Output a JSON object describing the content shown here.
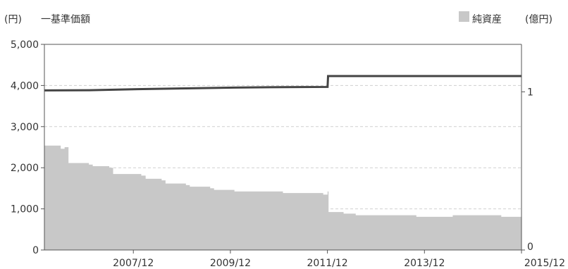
{
  "chart_data": {
    "type": "line+area",
    "legend": {
      "left_unit": "(円)",
      "left_series": "一基準価額",
      "right_series": "純資産",
      "right_unit": "(億円)",
      "right_swatch_color": "#c8c8c8"
    },
    "x_axis": {
      "tick_labels": [
        "2007/12",
        "2009/12",
        "2011/12",
        "2013/12",
        "2015/12"
      ],
      "range": [
        "2006/02",
        "2015/12"
      ]
    },
    "y_left": {
      "range": [
        0,
        5000
      ],
      "tick_labels": [
        "5,000",
        "4,000",
        "3,000",
        "2,000",
        "1,000",
        "0"
      ]
    },
    "y_right": {
      "range": [
        0,
        1.3
      ],
      "tick_labels": [
        "1",
        "0"
      ]
    },
    "series": [
      {
        "name": "純資産",
        "kind": "area",
        "axis": "right",
        "color": "#c8c8c8",
        "x": [
          2006.08,
          2006.42,
          2006.5,
          2006.58,
          2007.0,
          2007.08,
          2007.42,
          2007.5,
          2007.58,
          2008.08,
          2008.17,
          2008.5,
          2008.58,
          2009.0,
          2009.08,
          2009.5,
          2009.58,
          2010.0,
          2010.5,
          2011.0,
          2011.5,
          2011.83,
          2011.92,
          2011.94,
          2012.25,
          2012.5,
          2013.0,
          2013.5,
          2013.75,
          2014.0,
          2014.5,
          2015.0,
          2015.5,
          2015.92
        ],
        "values": [
          0.66,
          0.64,
          0.65,
          0.55,
          0.54,
          0.53,
          0.52,
          0.48,
          0.48,
          0.47,
          0.45,
          0.44,
          0.42,
          0.41,
          0.4,
          0.39,
          0.38,
          0.37,
          0.37,
          0.36,
          0.36,
          0.35,
          0.37,
          0.24,
          0.23,
          0.22,
          0.22,
          0.22,
          0.21,
          0.21,
          0.22,
          0.22,
          0.21,
          0.21
        ]
      },
      {
        "name": "基準価額",
        "kind": "line",
        "axis": "left",
        "color": "#444444",
        "x": [
          2006.08,
          2007.0,
          2008.0,
          2009.0,
          2010.0,
          2011.0,
          2011.92,
          2011.93,
          2012.5,
          2013.0,
          2014.0,
          2015.0,
          2015.92
        ],
        "values": [
          3880,
          3885,
          3910,
          3930,
          3950,
          3960,
          3965,
          4230,
          4230,
          4230,
          4230,
          4230,
          4230
        ]
      }
    ]
  }
}
